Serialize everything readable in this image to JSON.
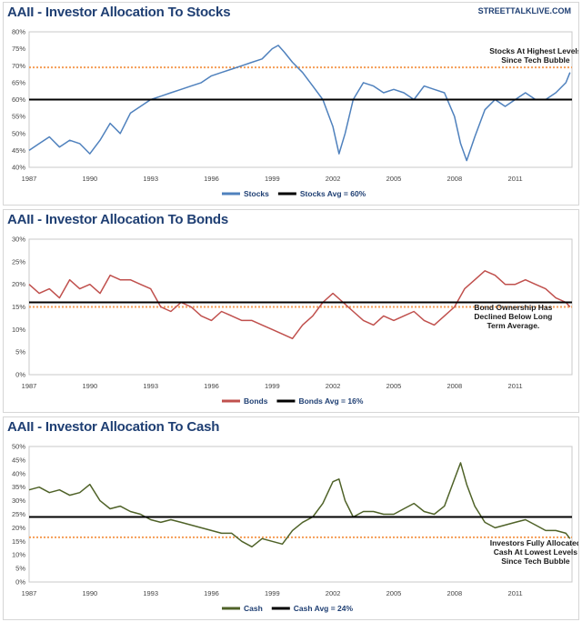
{
  "source": "STREETTALKLIVE.COM",
  "chart_data": [
    {
      "type": "line",
      "title": "AAII - Investor Allocation To Stocks",
      "xlim": [
        1987,
        2013.8
      ],
      "ylim": [
        40,
        80
      ],
      "yticks": [
        40,
        45,
        50,
        55,
        60,
        65,
        70,
        75,
        80
      ],
      "ytick_labels": [
        "40%",
        "45%",
        "50%",
        "55%",
        "60%",
        "65%",
        "70%",
        "75%",
        "80%"
      ],
      "xticks": [
        1987,
        1990,
        1993,
        1996,
        1999,
        2002,
        2005,
        2008,
        2011
      ],
      "xtick_labels": [
        "1987",
        "1990",
        "1993",
        "1996",
        "1999",
        "2002",
        "2005",
        "2008",
        "2011"
      ],
      "series_name": "Stocks",
      "series_color": "#4f81bd",
      "avg_label": "Stocks Avg = 60%",
      "avg_value": 60,
      "reference_value": 69.5,
      "annotation": [
        "Stocks At Highest Levels",
        "Since Tech Bubble"
      ],
      "x": [
        1987.0,
        1987.5,
        1988.0,
        1988.5,
        1989.0,
        1989.5,
        1990.0,
        1990.5,
        1991.0,
        1991.5,
        1992.0,
        1992.5,
        1993.0,
        1993.5,
        1994.0,
        1994.5,
        1995.0,
        1995.5,
        1996.0,
        1996.5,
        1997.0,
        1997.5,
        1998.0,
        1998.5,
        1999.0,
        1999.3,
        1999.6,
        2000.0,
        2000.5,
        2001.0,
        2001.5,
        2002.0,
        2002.3,
        2002.6,
        2003.0,
        2003.5,
        2004.0,
        2004.5,
        2005.0,
        2005.5,
        2006.0,
        2006.5,
        2007.0,
        2007.5,
        2008.0,
        2008.3,
        2008.6,
        2009.0,
        2009.5,
        2010.0,
        2010.5,
        2011.0,
        2011.5,
        2012.0,
        2012.5,
        2013.0,
        2013.5,
        2013.7
      ],
      "values": [
        45,
        47,
        49,
        46,
        48,
        47,
        44,
        48,
        53,
        50,
        56,
        58,
        60,
        61,
        62,
        63,
        64,
        65,
        67,
        68,
        69,
        70,
        71,
        72,
        75,
        76,
        74,
        71,
        68,
        64,
        60,
        52,
        44,
        50,
        60,
        65,
        64,
        62,
        63,
        62,
        60,
        64,
        63,
        62,
        55,
        47,
        42,
        49,
        57,
        60,
        58,
        60,
        62,
        60,
        60,
        62,
        65,
        68
      ]
    },
    {
      "type": "line",
      "title": "AAII - Investor Allocation To Bonds",
      "xlim": [
        1987,
        2013.8
      ],
      "ylim": [
        0,
        30
      ],
      "yticks": [
        0,
        5,
        10,
        15,
        20,
        25,
        30
      ],
      "ytick_labels": [
        "0%",
        "5%",
        "10%",
        "15%",
        "20%",
        "25%",
        "30%"
      ],
      "xticks": [
        1987,
        1990,
        1993,
        1996,
        1999,
        2002,
        2005,
        2008,
        2011
      ],
      "xtick_labels": [
        "1987",
        "1990",
        "1993",
        "1996",
        "1999",
        "2002",
        "2005",
        "2008",
        "2011"
      ],
      "series_name": "Bonds",
      "series_color": "#c0504d",
      "avg_label": "Bonds Avg = 16%",
      "avg_value": 16,
      "reference_value": 15,
      "annotation": [
        "Bond Ownership Has",
        "Declined Below Long",
        "Term Average."
      ],
      "x": [
        1987.0,
        1987.5,
        1988.0,
        1988.5,
        1989.0,
        1989.5,
        1990.0,
        1990.5,
        1991.0,
        1991.5,
        1992.0,
        1992.5,
        1993.0,
        1993.5,
        1994.0,
        1994.5,
        1995.0,
        1995.5,
        1996.0,
        1996.5,
        1997.0,
        1997.5,
        1998.0,
        1998.5,
        1999.0,
        1999.5,
        2000.0,
        2000.5,
        2001.0,
        2001.5,
        2002.0,
        2002.5,
        2003.0,
        2003.5,
        2004.0,
        2004.5,
        2005.0,
        2005.5,
        2006.0,
        2006.5,
        2007.0,
        2007.5,
        2008.0,
        2008.5,
        2009.0,
        2009.5,
        2010.0,
        2010.5,
        2011.0,
        2011.5,
        2012.0,
        2012.5,
        2013.0,
        2013.5,
        2013.7
      ],
      "values": [
        20,
        18,
        19,
        17,
        21,
        19,
        20,
        18,
        22,
        21,
        21,
        20,
        19,
        15,
        14,
        16,
        15,
        13,
        12,
        14,
        13,
        12,
        12,
        11,
        10,
        9,
        8,
        11,
        13,
        16,
        18,
        16,
        14,
        12,
        11,
        13,
        12,
        13,
        14,
        12,
        11,
        13,
        15,
        19,
        21,
        23,
        22,
        20,
        20,
        21,
        20,
        19,
        17,
        16,
        15
      ]
    },
    {
      "type": "line",
      "title": "AAII - Investor Allocation To Cash",
      "xlim": [
        1987,
        2013.8
      ],
      "ylim": [
        0,
        50
      ],
      "yticks": [
        0,
        5,
        10,
        15,
        20,
        25,
        30,
        35,
        40,
        45,
        50
      ],
      "ytick_labels": [
        "0%",
        "5%",
        "10%",
        "15%",
        "20%",
        "25%",
        "30%",
        "35%",
        "40%",
        "45%",
        "50%"
      ],
      "xticks": [
        1987,
        1990,
        1993,
        1996,
        1999,
        2002,
        2005,
        2008,
        2011
      ],
      "xtick_labels": [
        "1987",
        "1990",
        "1993",
        "1996",
        "1999",
        "2002",
        "2005",
        "2008",
        "2011"
      ],
      "series_name": "Cash",
      "series_color": "#4f6228",
      "avg_label": "Cash Avg = 24%",
      "avg_value": 24,
      "reference_value": 16.5,
      "annotation": [
        "Investors Fully Allocated",
        "Cash At Lowest Levels",
        "Since Tech Bubble"
      ],
      "x": [
        1987.0,
        1987.5,
        1988.0,
        1988.5,
        1989.0,
        1989.5,
        1990.0,
        1990.5,
        1991.0,
        1991.5,
        1992.0,
        1992.5,
        1993.0,
        1993.5,
        1994.0,
        1994.5,
        1995.0,
        1995.5,
        1996.0,
        1996.5,
        1997.0,
        1997.5,
        1998.0,
        1998.5,
        1999.0,
        1999.5,
        2000.0,
        2000.5,
        2001.0,
        2001.5,
        2002.0,
        2002.3,
        2002.6,
        2003.0,
        2003.5,
        2004.0,
        2004.5,
        2005.0,
        2005.5,
        2006.0,
        2006.5,
        2007.0,
        2007.5,
        2008.0,
        2008.3,
        2008.6,
        2009.0,
        2009.5,
        2010.0,
        2010.5,
        2011.0,
        2011.5,
        2012.0,
        2012.5,
        2013.0,
        2013.5,
        2013.7
      ],
      "values": [
        34,
        35,
        33,
        34,
        32,
        33,
        36,
        30,
        27,
        28,
        26,
        25,
        23,
        22,
        23,
        22,
        21,
        20,
        19,
        18,
        18,
        15,
        13,
        16,
        15,
        14,
        19,
        22,
        24,
        29,
        37,
        38,
        30,
        24,
        26,
        26,
        25,
        25,
        27,
        29,
        26,
        25,
        28,
        38,
        44,
        36,
        28,
        22,
        20,
        21,
        22,
        23,
        21,
        19,
        19,
        18,
        16
      ]
    }
  ]
}
